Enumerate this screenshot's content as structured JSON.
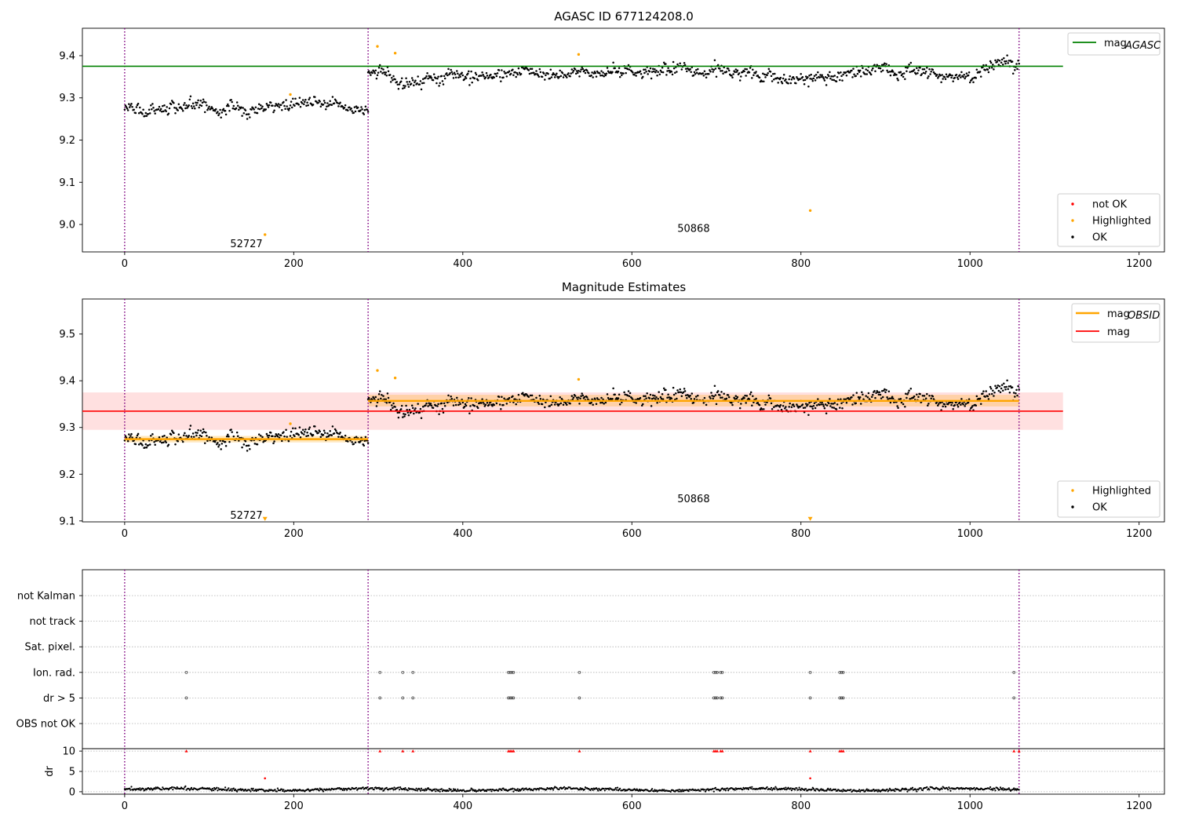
{
  "colors": {
    "ok": "#000000",
    "highlighted": "#ffa500",
    "not_ok": "#ff0000",
    "agasc_line": "#008000",
    "mag_line": "#ff0000",
    "obsid_line": "#ffa500",
    "obs_boundary": "#800080",
    "grid": "#b0b0b0"
  },
  "chart_data": [
    {
      "type": "scatter",
      "title": "AGASC ID 677124208.0",
      "xlim": [
        -50,
        1230
      ],
      "ylim": [
        8.935,
        9.465
      ],
      "xticks": [
        0,
        200,
        400,
        600,
        800,
        1000,
        1200
      ],
      "yticks": [
        9.0,
        9.1,
        9.2,
        9.3,
        9.4
      ],
      "ytick_labels": [
        "9.0",
        "9.1",
        "9.2",
        "9.3",
        "9.4"
      ],
      "obs_boundaries": [
        0,
        288,
        1058
      ],
      "obsids": [
        {
          "label": "52727",
          "x": 144,
          "y": 8.955
        },
        {
          "label": "50868",
          "x": 673,
          "y": 8.992
        }
      ],
      "segments": [
        {
          "x0": 0,
          "x1": 288,
          "mean": 9.275,
          "noise": 0.012
        },
        {
          "x0": 288,
          "x1": 1058,
          "mean": 9.358,
          "noise": 0.012
        }
      ],
      "highlighted_points": [
        {
          "x": 166,
          "y": 8.976
        },
        {
          "x": 196,
          "y": 9.308
        },
        {
          "x": 299,
          "y": 9.422
        },
        {
          "x": 320,
          "y": 9.406
        },
        {
          "x": 537,
          "y": 9.403
        },
        {
          "x": 811,
          "y": 9.033
        }
      ],
      "hlines": [
        {
          "name": "mag_AGASC",
          "y": 9.375,
          "x0": -50,
          "x1": 1110,
          "color": "#008000"
        }
      ],
      "legend_top": {
        "placement": "upper-right",
        "entries": [
          {
            "label": "mag",
            "sub": "AGASC",
            "kind": "line",
            "color": "#008000"
          }
        ]
      },
      "legend_bottom": {
        "placement": "lower-right",
        "entries": [
          {
            "label": "not OK",
            "kind": "dot",
            "color": "#ff0000"
          },
          {
            "label": "Highlighted",
            "kind": "dot",
            "color": "#ffa500"
          },
          {
            "label": "OK",
            "kind": "dot",
            "color": "#000000"
          }
        ]
      }
    },
    {
      "type": "scatter",
      "title": "Magnitude Estimates",
      "xlim": [
        -50,
        1230
      ],
      "ylim": [
        9.098,
        9.575
      ],
      "xticks": [
        0,
        200,
        400,
        600,
        800,
        1000,
        1200
      ],
      "yticks": [
        9.1,
        9.2,
        9.3,
        9.4,
        9.5
      ],
      "ytick_labels": [
        "9.1",
        "9.2",
        "9.3",
        "9.4",
        "9.5"
      ],
      "obs_boundaries": [
        0,
        288,
        1058
      ],
      "obsids": [
        {
          "label": "52727",
          "x": 144,
          "y": 9.113
        },
        {
          "label": "50868",
          "x": 673,
          "y": 9.148
        }
      ],
      "segments": [
        {
          "x0": 0,
          "x1": 288,
          "mean": 9.275,
          "noise": 0.012
        },
        {
          "x0": 288,
          "x1": 1058,
          "mean": 9.358,
          "noise": 0.012
        }
      ],
      "highlighted_points": [
        {
          "x": 196,
          "y": 9.308
        },
        {
          "x": 299,
          "y": 9.422
        },
        {
          "x": 320,
          "y": 9.406
        },
        {
          "x": 537,
          "y": 9.403
        }
      ],
      "offscale_points": [
        {
          "x": 166,
          "y": 9.1
        },
        {
          "x": 811,
          "y": 9.1
        }
      ],
      "mag_band": {
        "y": 9.335,
        "lo": 9.295,
        "hi": 9.375,
        "x0": -50,
        "x1": 1110
      },
      "obsid_means": [
        {
          "x0": 0,
          "x1": 288,
          "y": 9.275,
          "lo": 9.268,
          "hi": 9.282
        },
        {
          "x0": 288,
          "x1": 1058,
          "y": 9.357,
          "lo": 9.345,
          "hi": 9.37
        }
      ],
      "legend_top": {
        "placement": "upper-right",
        "entries": [
          {
            "label": "mag",
            "sub": "OBSID",
            "kind": "line",
            "color": "#ffa500"
          },
          {
            "label": "mag",
            "sub": "",
            "kind": "line",
            "color": "#ff0000"
          }
        ]
      },
      "legend_bottom": {
        "placement": "lower-right",
        "entries": [
          {
            "label": "Highlighted",
            "kind": "dot",
            "color": "#ffa500"
          },
          {
            "label": "OK",
            "kind": "dot",
            "color": "#000000"
          }
        ]
      }
    },
    {
      "type": "scatter",
      "title": "",
      "xlim": [
        -50,
        1230
      ],
      "flag_labels": [
        "not Kalman",
        "not track",
        "Sat. pixel.",
        "Ion. rad.",
        "dr > 5",
        "OBS not OK"
      ],
      "obs_boundaries": [
        0,
        288,
        1058
      ],
      "flag_points": {
        "Ion. rad.": [
          73,
          302,
          329,
          341,
          454,
          456,
          458,
          460,
          538,
          697,
          699,
          701,
          705,
          707,
          811,
          846,
          848,
          850,
          1052
        ],
        "dr > 5": [
          73,
          302,
          329,
          341,
          454,
          456,
          458,
          460,
          538,
          697,
          699,
          701,
          705,
          707,
          811,
          846,
          848,
          850,
          1052
        ]
      }
    },
    {
      "type": "scatter",
      "title": "",
      "ylabel": "dr",
      "xlim": [
        -50,
        1230
      ],
      "ylim": [
        -0.6,
        10.6
      ],
      "xticks": [
        0,
        200,
        400,
        600,
        800,
        1000,
        1200
      ],
      "yticks": [
        0,
        5,
        10
      ],
      "ytick_labels": [
        "0",
        "5",
        "10"
      ],
      "obs_boundaries": [
        0,
        288,
        1058
      ],
      "clipped_points_y": 10,
      "clipped_points_x": [
        73,
        302,
        329,
        341,
        454,
        456,
        458,
        460,
        538,
        697,
        699,
        701,
        705,
        707,
        811,
        846,
        848,
        850,
        1052,
        1058
      ],
      "outliers": [
        {
          "x": 166,
          "y": 3.3
        },
        {
          "x": 811,
          "y": 3.3
        }
      ]
    }
  ]
}
